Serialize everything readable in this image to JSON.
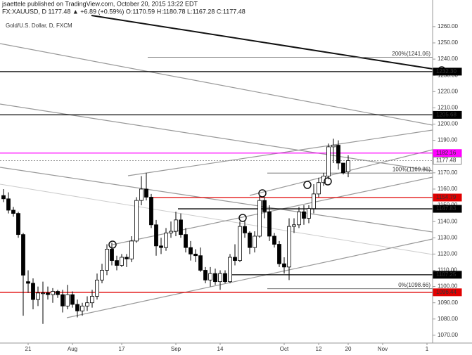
{
  "header": {
    "author_line": "jsaettele published on TradingView.com, October 20, 2015 13:22 EDT",
    "symbol_line": "FX:XAUUSD, D 1177.48 ▲ +6.89 (+0.59%) O:1170.59 H:1180.78 L:1167.28 C:1177.48"
  },
  "chart_data": {
    "type": "candlestick",
    "title": "Gold/U.S. Dollar, D, FXCM",
    "up_color": "#ffffff",
    "down_color": "#000000",
    "wick_color": "#000000",
    "categories": [
      null,
      null,
      null,
      null,
      null,
      "21",
      null,
      null,
      null,
      null,
      null,
      null,
      null,
      null,
      "Aug",
      null,
      null,
      null,
      null,
      null,
      null,
      null,
      null,
      null,
      "17",
      null,
      null,
      null,
      null,
      null,
      null,
      null,
      null,
      null,
      null,
      "Sep",
      null,
      null,
      null,
      null,
      null,
      null,
      null,
      null,
      "14",
      null,
      null,
      null,
      null,
      null,
      null,
      null,
      null,
      null,
      null,
      null,
      null,
      "Oct",
      null,
      null,
      null,
      null,
      null,
      null,
      "12",
      null,
      null,
      null,
      null,
      null,
      "20",
      null,
      null,
      null,
      null,
      null,
      null,
      "Nov",
      null,
      null,
      null,
      null,
      null,
      null,
      null,
      null,
      "1",
      null
    ],
    "open": [
      1156,
      1154,
      1147,
      1145,
      1132,
      1103,
      1102,
      1092,
      1096,
      1096,
      1095,
      1097,
      1095,
      1088,
      1095,
      1089,
      1085,
      1088,
      1090,
      1094,
      1104,
      1110,
      1123,
      1116,
      1113,
      1118,
      1117,
      1128,
      1153,
      1160,
      1155,
      1138,
      1125,
      1124,
      1133,
      1134,
      1141,
      1132,
      1124,
      1120,
      1119,
      1110,
      1104,
      1108,
      1103,
      1108,
      1103,
      1118,
      1116,
      1137,
      1133,
      1124,
      1131,
      1153,
      1146,
      1131,
      1126,
      1114,
      1112,
      1137,
      1138,
      1146,
      1142,
      1148,
      1157,
      1164,
      1168,
      1186,
      1187,
      1176,
      1170.59,
      null,
      null,
      null,
      null,
      null,
      null,
      null,
      null,
      null,
      null,
      null,
      null,
      null,
      null,
      null,
      null,
      null
    ],
    "high": [
      1160,
      1158,
      1149,
      1146,
      1133,
      1110,
      1105,
      1100,
      1103,
      1100,
      1099,
      1098,
      1098,
      1101,
      1097,
      1092,
      1090,
      1094,
      1098,
      1108,
      1114,
      1126,
      1127,
      1119,
      1120,
      1120,
      1131,
      1155,
      1168,
      1170,
      1157,
      1141,
      1130,
      1136,
      1140,
      1146,
      1145,
      1136,
      1128,
      1123,
      1124,
      1112,
      1112,
      1111,
      1110,
      1110,
      1120,
      1126,
      1140,
      1140,
      1134,
      1134,
      1156,
      1155,
      1150,
      1133,
      1128,
      1118,
      1142,
      1142,
      1149,
      1150,
      1150,
      1163,
      1167,
      1170,
      1188,
      1191,
      1190,
      1176,
      1180.78,
      null,
      null,
      null,
      null,
      null,
      null,
      null,
      null,
      null,
      null,
      null,
      null,
      null,
      null,
      null,
      null,
      null
    ],
    "low": [
      1152,
      1145,
      1143,
      1130,
      1082,
      1096,
      1086,
      1088,
      1077,
      1092,
      1090,
      1093,
      1084,
      1086,
      1087,
      1081,
      1082,
      1085,
      1087,
      1092,
      1102,
      1107,
      1113,
      1110,
      1112,
      1112,
      1115,
      1127,
      1150,
      1153,
      1136,
      1119,
      1120,
      1122,
      1130,
      1131,
      1130,
      1121,
      1116,
      1115,
      1109,
      1102,
      1100,
      1101,
      1098,
      1102,
      1102,
      1113,
      1115,
      1130,
      1120,
      1121,
      1130,
      1142,
      1128,
      1124,
      1112,
      1108,
      1104,
      1133,
      1136,
      1138,
      1139,
      1145,
      1155,
      1162,
      1166,
      1176,
      1172,
      1169,
      1167.28,
      null,
      null,
      null,
      null,
      null,
      null,
      null,
      null,
      null,
      null,
      null,
      null,
      null,
      null,
      null,
      null,
      null
    ],
    "close": [
      1154,
      1147,
      1145,
      1132,
      1107,
      1102,
      1092,
      1096,
      1096,
      1095,
      1097,
      1095,
      1088,
      1095,
      1089,
      1085,
      1088,
      1090,
      1094,
      1104,
      1110,
      1123,
      1116,
      1113,
      1118,
      1117,
      1128,
      1153,
      1160,
      1155,
      1138,
      1125,
      1124,
      1133,
      1134,
      1141,
      1132,
      1124,
      1120,
      1119,
      1110,
      1104,
      1108,
      1103,
      1108,
      1103,
      1118,
      1116,
      1137,
      1133,
      1124,
      1131,
      1153,
      1146,
      1131,
      1126,
      1114,
      1112,
      1137,
      1138,
      1146,
      1142,
      1148,
      1157,
      1164,
      1168,
      1186,
      1187,
      1176,
      1170,
      1177.48,
      null,
      null,
      null,
      null,
      null,
      null,
      null,
      null,
      null,
      null,
      null,
      null,
      null,
      null,
      null,
      null,
      null
    ],
    "ylim": [
      1065.2,
      1276.4
    ],
    "yticks": [
      {
        "value": 1070,
        "label": "1070.00"
      },
      {
        "value": 1080,
        "label": "1080.00"
      },
      {
        "value": 1090,
        "label": "1090.00"
      },
      {
        "value": 1100,
        "label": "1100.00"
      },
      {
        "value": 1110,
        "label": "1110.00"
      },
      {
        "value": 1120,
        "label": "1120.00"
      },
      {
        "value": 1130,
        "label": "1130.00"
      },
      {
        "value": 1140,
        "label": "1140.00"
      },
      {
        "value": 1150,
        "label": "1150.00"
      },
      {
        "value": 1160,
        "label": "1160.00"
      },
      {
        "value": 1170,
        "label": "1170.00"
      },
      {
        "value": 1180,
        "label": "1180.00"
      },
      {
        "value": 1190,
        "label": "1190.00"
      },
      {
        "value": 1200,
        "label": "1200.00"
      },
      {
        "value": 1210,
        "label": "1210.00"
      },
      {
        "value": 1220,
        "label": "1220.00"
      },
      {
        "value": 1230,
        "label": "1230.00"
      },
      {
        "value": 1240,
        "label": "1240.00"
      },
      {
        "value": 1250,
        "label": "1250.00"
      },
      {
        "value": 1260,
        "label": "1260.00"
      }
    ],
    "levels": [
      {
        "value": 1232.3,
        "label": "1232.30",
        "color": "#000000"
      },
      {
        "value": 1205.68,
        "label": "1205.68",
        "color": "#000000"
      },
      {
        "value": 1182.16,
        "label": "1182.16",
        "color": "#ff00ff"
      },
      {
        "value": 1177.48,
        "label": "1177.48",
        "color": "#888888"
      },
      {
        "value": 1154.79,
        "label": "1154.79",
        "color": "#e00000"
      },
      {
        "value": 1147.83,
        "label": "1147.83",
        "color": "#000000"
      },
      {
        "value": 1107.25,
        "label": "1107.25",
        "color": "#000000"
      },
      {
        "value": 1096.44,
        "label": "1096.44",
        "color": "#e00000"
      }
    ],
    "fib_levels": [
      {
        "value": 1241.06,
        "label": "200%(1241.06)"
      },
      {
        "value": 1169.86,
        "label": "100%(1169.86)"
      },
      {
        "value": 1098.66,
        "label": "0%(1098.66)"
      }
    ]
  }
}
